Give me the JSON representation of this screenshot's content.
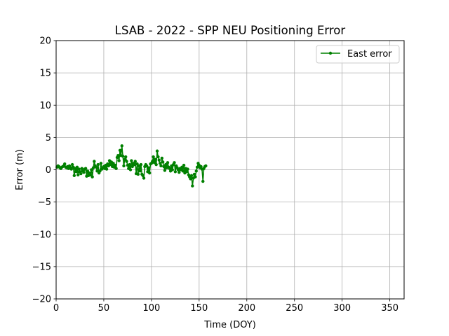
{
  "chart_data": {
    "type": "line",
    "title": "LSAB - 2022 - SPP NEU Positioning Error",
    "xlabel": "Time (DOY)",
    "ylabel": "Error (m)",
    "xlim": [
      0,
      365
    ],
    "ylim": [
      -20,
      20
    ],
    "xticks": [
      0,
      50,
      100,
      150,
      200,
      250,
      300,
      350
    ],
    "yticks": [
      -20,
      -15,
      -10,
      -5,
      0,
      5,
      10,
      15,
      20
    ],
    "xtick_labels": [
      "0",
      "50",
      "100",
      "150",
      "200",
      "250",
      "300",
      "350"
    ],
    "ytick_labels": [
      "−20",
      "−15",
      "−10",
      "−5",
      "0",
      "5",
      "10",
      "15",
      "20"
    ],
    "grid": true,
    "legend_position": "top-right",
    "colors": {
      "east": "#008000"
    },
    "series": [
      {
        "name": "East error",
        "x": [
          1,
          2,
          3,
          4,
          5,
          6,
          7,
          8,
          9,
          10,
          11,
          12,
          13,
          14,
          15,
          16,
          17,
          18,
          19,
          20,
          21,
          22,
          23,
          24,
          25,
          26,
          27,
          28,
          29,
          30,
          31,
          32,
          33,
          34,
          35,
          36,
          37,
          38,
          39,
          40,
          41,
          42,
          43,
          44,
          45,
          46,
          47,
          48,
          49,
          50,
          51,
          52,
          53,
          54,
          55,
          56,
          57,
          58,
          59,
          60,
          61,
          62,
          63,
          64,
          65,
          66,
          67,
          68,
          69,
          70,
          71,
          72,
          73,
          74,
          75,
          76,
          77,
          78,
          79,
          80,
          81,
          82,
          83,
          84,
          85,
          86,
          87,
          88,
          89,
          90,
          91,
          92,
          93,
          94,
          95,
          96,
          97,
          98,
          99,
          100,
          101,
          102,
          103,
          104,
          105,
          106,
          107,
          108,
          109,
          110,
          111,
          112,
          113,
          114,
          115,
          116,
          117,
          118,
          119,
          120,
          121,
          122,
          123,
          124,
          125,
          126,
          127,
          128,
          129,
          130,
          131,
          132,
          133,
          134,
          135,
          136,
          137,
          138,
          139,
          140,
          141,
          142,
          143,
          144,
          145,
          146,
          147,
          148,
          149,
          150,
          151,
          152,
          153,
          154,
          155,
          156,
          157
        ],
        "y": [
          0.4,
          0.6,
          0.5,
          0.3,
          0.2,
          0.4,
          0.5,
          0.6,
          0.9,
          0.4,
          0.3,
          0.5,
          0.2,
          0.6,
          0.3,
          0.1,
          0.8,
          0.4,
          -0.9,
          0.2,
          -0.3,
          0.4,
          -0.8,
          0.1,
          -0.3,
          -0.6,
          0.2,
          -0.2,
          -0.4,
          0.1,
          0.2,
          -1.0,
          -0.2,
          -0.9,
          -0.5,
          -0.8,
          0.0,
          -1.1,
          0.3,
          1.3,
          0.6,
          0.4,
          -0.2,
          0.8,
          -0.5,
          -0.2,
          1.0,
          0.1,
          0.3,
          0.5,
          0.2,
          0.7,
          0.1,
          0.9,
          0.6,
          1.4,
          0.8,
          1.2,
          0.5,
          1.0,
          0.4,
          0.7,
          0.2,
          1.9,
          2.2,
          1.4,
          3.0,
          2.2,
          3.7,
          2.1,
          0.6,
          1.6,
          2.0,
          1.3,
          0.7,
          0.2,
          0.8,
          0.0,
          1.4,
          0.5,
          1.0,
          0.8,
          1.3,
          -0.6,
          0.9,
          -0.7,
          0.6,
          -0.2,
          0.8,
          -0.7,
          -0.9,
          -1.3,
          0.5,
          0.8,
          0.6,
          -0.3,
          0.3,
          -0.5,
          0.9,
          1.0,
          1.3,
          2.0,
          1.1,
          1.6,
          0.8,
          2.9,
          2.0,
          1.5,
          1.0,
          0.6,
          1.8,
          1.2,
          0.5,
          -0.1,
          0.8,
          0.3,
          1.1,
          0.4,
          0.2,
          -0.2,
          0.6,
          0.0,
          0.8,
          1.1,
          -0.3,
          0.6,
          0.3,
          0.0,
          -0.4,
          0.2,
          0.0,
          0.4,
          -0.2,
          0.7,
          -0.5,
          0.2,
          -0.3,
          0.1,
          -0.8,
          -1.1,
          -1.4,
          -0.9,
          -2.5,
          -1.3,
          -0.7,
          -1.1,
          -0.2,
          0.4,
          1.0,
          0.7,
          0.3,
          0.5,
          0.1,
          -1.8,
          0.2,
          0.5,
          0.6
        ]
      }
    ]
  }
}
